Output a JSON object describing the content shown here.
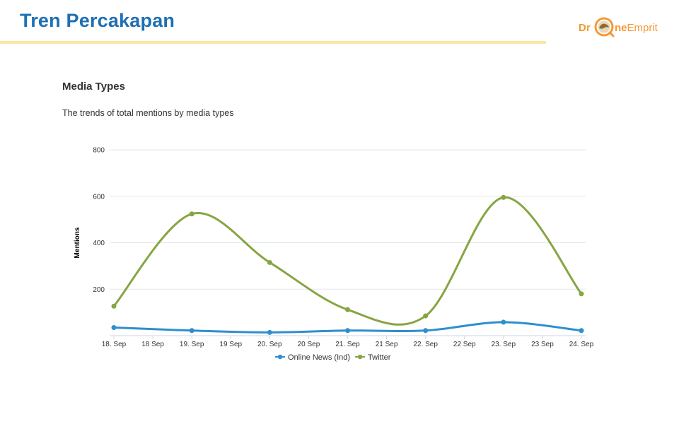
{
  "slide": {
    "title": "Tren Percakapan"
  },
  "logo": {
    "part1": "Dr",
    "part2": "ne",
    "part3": "Emprit",
    "icon": "drone-logo-icon"
  },
  "chart_data": {
    "type": "line",
    "title": "Media Types",
    "subtitle": "The trends of total mentions by media types",
    "xlabel": "",
    "ylabel": "Mentions",
    "categories": [
      "18. Sep",
      "18 Sep",
      "19. Sep",
      "19 Sep",
      "20. Sep",
      "20 Sep",
      "21. Sep",
      "21 Sep",
      "22. Sep",
      "22 Sep",
      "23. Sep",
      "23 Sep",
      "24. Sep"
    ],
    "ylim": [
      0,
      800
    ],
    "yticks": [
      200,
      400,
      600,
      800
    ],
    "grid": true,
    "legend_position": "bottom",
    "series": [
      {
        "name": "Online News (Ind)",
        "color": "#2e8fcd",
        "x": [
          0,
          2,
          4,
          6,
          8,
          10,
          12
        ],
        "values": [
          35,
          22,
          14,
          22,
          22,
          58,
          22
        ]
      },
      {
        "name": "Twitter",
        "color": "#86a543",
        "x": [
          0,
          2,
          4,
          6,
          8,
          10,
          12
        ],
        "values": [
          127,
          524,
          315,
          112,
          85,
          595,
          180
        ]
      }
    ]
  }
}
